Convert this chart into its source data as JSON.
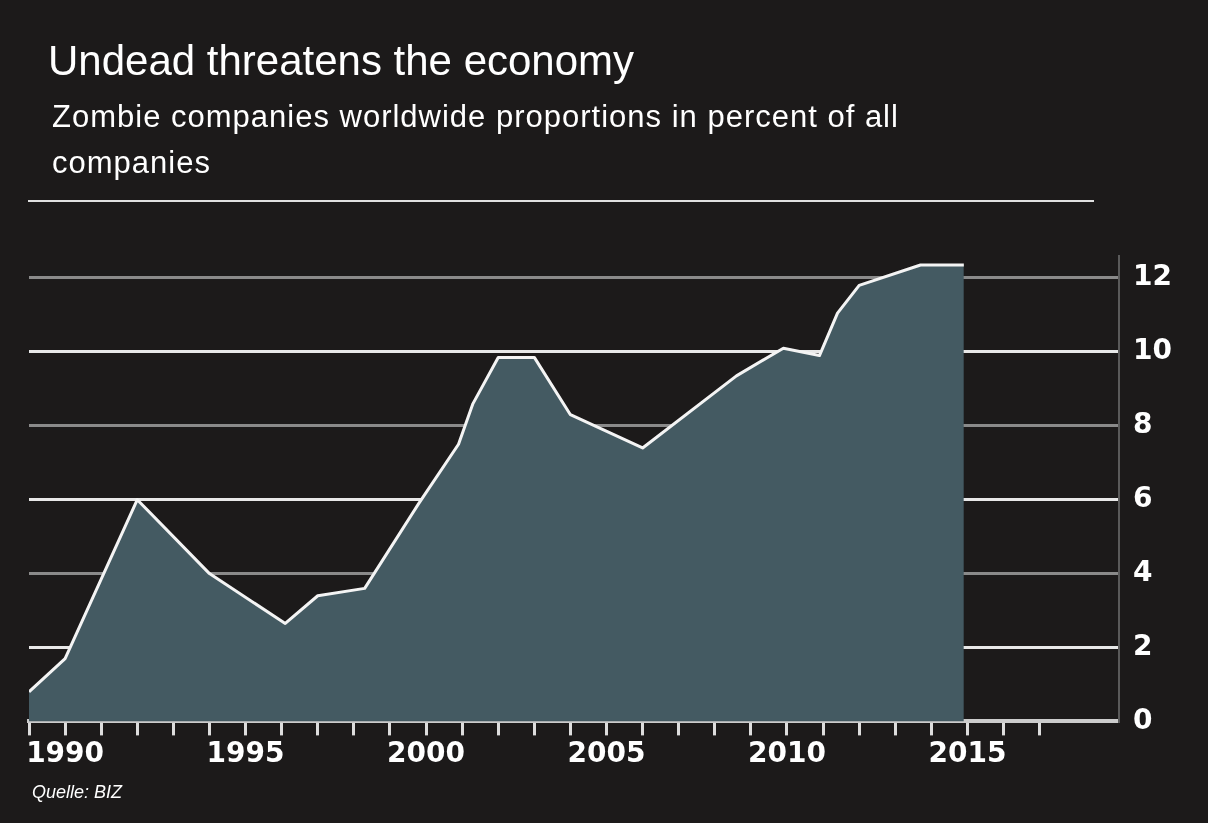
{
  "chart_data": {
    "type": "area",
    "title": "Undead threatens the economy",
    "subtitle": "Zombie companies worldwide proportions in percent of all companies",
    "annotations": [
      "Quelle: BIZ"
    ],
    "x": [
      1989,
      1990,
      1992,
      1994,
      1996.1,
      1997,
      1998.3,
      1999.8,
      2000.9,
      2001.3,
      2002,
      2003,
      2004,
      2006,
      2008.6,
      2009.9,
      2010.9,
      2011.4,
      2012,
      2013.7,
      2014.9
    ],
    "values": [
      0.8,
      1.7,
      6.0,
      4.0,
      2.65,
      3.4,
      3.6,
      5.9,
      7.5,
      8.6,
      9.85,
      9.85,
      8.3,
      7.4,
      9.35,
      10.1,
      9.9,
      11.05,
      11.8,
      12.35,
      12.35
    ],
    "color": "#445a62",
    "xlim": [
      1989,
      2019.2
    ],
    "xticks": [
      {
        "value": 1989,
        "label": null
      },
      {
        "value": 1990,
        "label": "1990"
      },
      {
        "value": 1991,
        "label": null
      },
      {
        "value": 1992,
        "label": null
      },
      {
        "value": 1993,
        "label": null
      },
      {
        "value": 1994,
        "label": null
      },
      {
        "value": 1995,
        "label": "1995"
      },
      {
        "value": 1996,
        "label": null
      },
      {
        "value": 1997,
        "label": null
      },
      {
        "value": 1998,
        "label": null
      },
      {
        "value": 1999,
        "label": null
      },
      {
        "value": 2000,
        "label": "2000"
      },
      {
        "value": 2001,
        "label": null
      },
      {
        "value": 2002,
        "label": null
      },
      {
        "value": 2003,
        "label": null
      },
      {
        "value": 2004,
        "label": null
      },
      {
        "value": 2005,
        "label": "2005"
      },
      {
        "value": 2006,
        "label": null
      },
      {
        "value": 2007,
        "label": null
      },
      {
        "value": 2008,
        "label": null
      },
      {
        "value": 2009,
        "label": null
      },
      {
        "value": 2010,
        "label": "2010"
      },
      {
        "value": 2011,
        "label": null
      },
      {
        "value": 2012,
        "label": null
      },
      {
        "value": 2013,
        "label": null
      },
      {
        "value": 2014,
        "label": null
      },
      {
        "value": 2015,
        "label": "2015"
      },
      {
        "value": 2016,
        "label": null
      },
      {
        "value": 2017,
        "label": null
      }
    ],
    "ylim": [
      0,
      12.6
    ],
    "yticks": [
      0,
      2,
      4,
      6,
      8,
      10,
      12
    ],
    "grid": "y"
  }
}
